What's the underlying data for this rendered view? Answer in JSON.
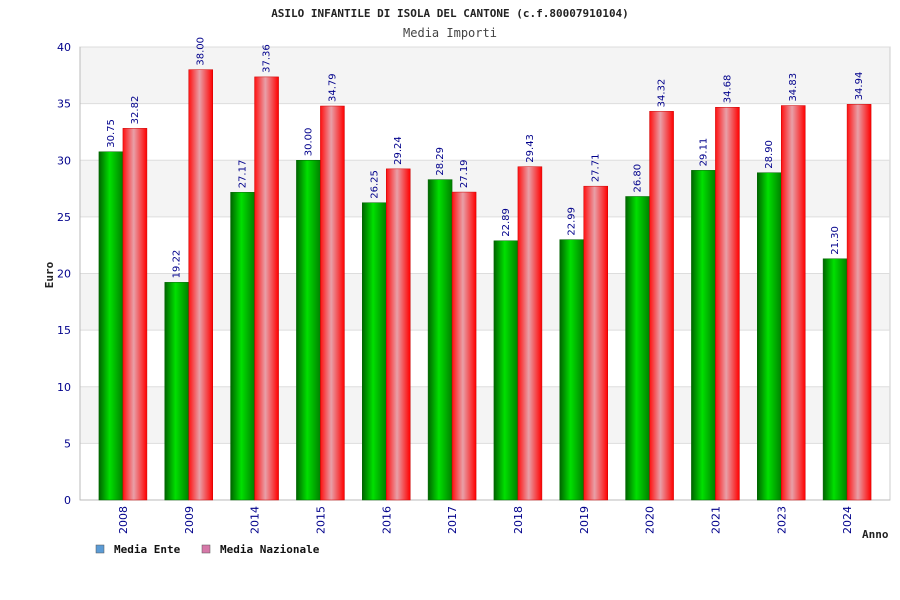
{
  "chart_data": {
    "type": "bar",
    "title": "ASILO INFANTILE DI ISOLA DEL CANTONE (c.f.80007910104)",
    "subtitle": "Media Importi",
    "ylabel": "Euro",
    "xlabel": "Anno",
    "ylim": [
      0,
      40
    ],
    "yticks": [
      0,
      5,
      10,
      15,
      20,
      25,
      30,
      35,
      40
    ],
    "grid": true,
    "legend_position": "bottom-left",
    "categories": [
      "2008",
      "2009",
      "2014",
      "2015",
      "2016",
      "2017",
      "2018",
      "2019",
      "2020",
      "2021",
      "2023",
      "2024"
    ],
    "series": [
      {
        "name": "Media Ente",
        "color": "#00a000",
        "legend_color": "#5b9bd5",
        "values": [
          30.75,
          19.22,
          27.17,
          30.0,
          26.25,
          28.29,
          22.89,
          22.99,
          26.8,
          29.11,
          28.9,
          21.3
        ],
        "labels": [
          "30.75",
          "19.22",
          "27.17",
          "30.00",
          "26.25",
          "28.29",
          "22.89",
          "22.99",
          "26.80",
          "29.11",
          "28.90",
          "21.30"
        ]
      },
      {
        "name": "Media Nazionale",
        "color": "#ff0000",
        "legend_color": "#d678a8",
        "values": [
          32.82,
          38.0,
          37.36,
          34.79,
          29.24,
          27.19,
          29.43,
          27.71,
          34.32,
          34.68,
          34.83,
          34.94
        ],
        "labels": [
          "32.82",
          "38.00",
          "37.36",
          "34.79",
          "29.24",
          "27.19",
          "29.43",
          "27.71",
          "34.32",
          "34.68",
          "34.83",
          "34.94"
        ]
      }
    ]
  }
}
